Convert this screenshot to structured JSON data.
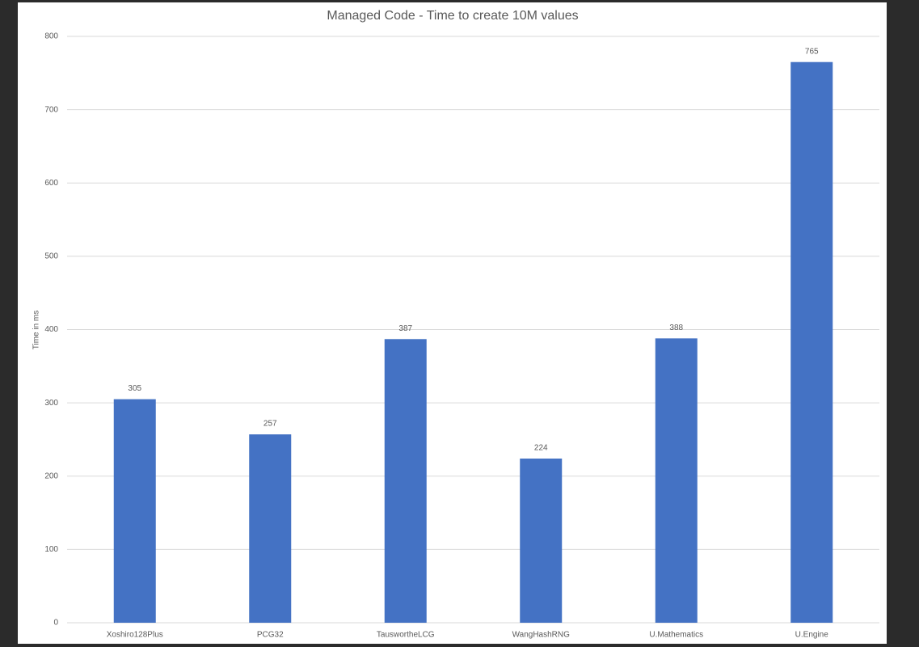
{
  "chart_data": {
    "type": "bar",
    "title": "Managed Code - Time to create 10M values",
    "y_label": "Time in ms",
    "categories": [
      "Xoshiro128Plus",
      "PCG32",
      "TauswortheLCG",
      "WangHashRNG",
      "U.Mathematics",
      "U.Engine"
    ],
    "values": [
      305,
      257,
      387,
      224,
      388,
      765
    ],
    "color": "#4472c4",
    "ylim": [
      0,
      800
    ],
    "yticks": [
      0,
      100,
      200,
      300,
      400,
      500,
      600,
      700,
      800
    ],
    "grid": true,
    "data_labels": true
  }
}
